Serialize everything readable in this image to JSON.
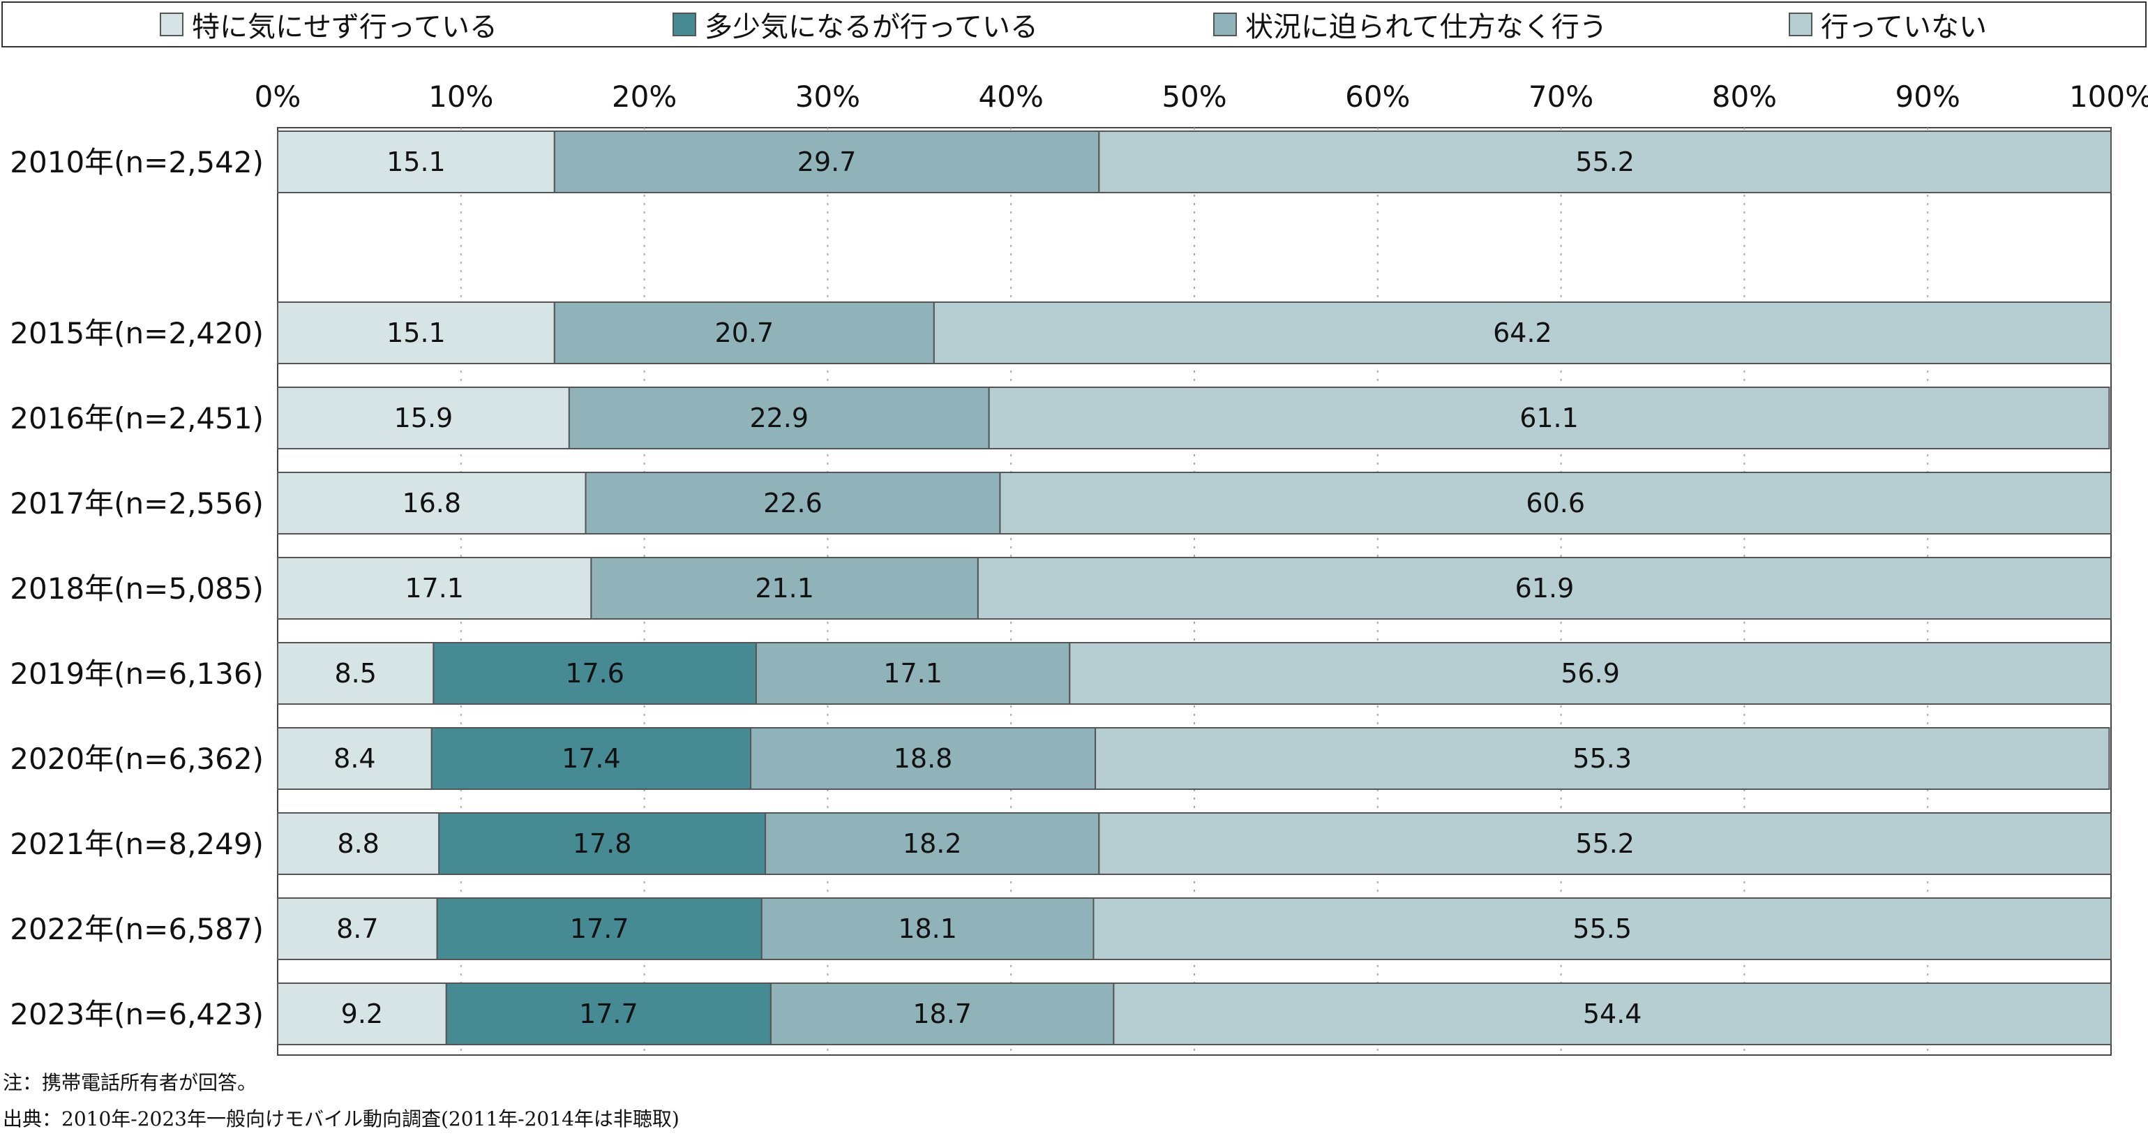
{
  "chart_data": {
    "type": "bar",
    "orientation": "horizontal",
    "stacked": true,
    "legend_position": "top",
    "x_ticks": [
      "0%",
      "10%",
      "20%",
      "30%",
      "40%",
      "50%",
      "60%",
      "70%",
      "80%",
      "90%",
      "100%"
    ],
    "xlim": [
      0,
      100
    ],
    "categories": [
      "2010年(n=2,542)",
      "2015年(n=2,420)",
      "2016年(n=2,451)",
      "2017年(n=2,556)",
      "2018年(n=5,085)",
      "2019年(n=6,136)",
      "2020年(n=6,362)",
      "2021年(n=8,249)",
      "2022年(n=6,587)",
      "2023年(n=6,423)"
    ],
    "series": [
      {
        "name": "特に気にせず行っている",
        "color": "#d6e4e6",
        "values": [
          15.1,
          15.1,
          15.9,
          16.8,
          17.1,
          8.5,
          8.4,
          8.8,
          8.7,
          9.2
        ]
      },
      {
        "name": "多少気になるが行っている",
        "color": "#468a94",
        "values": [
          null,
          null,
          null,
          null,
          null,
          17.6,
          17.4,
          17.8,
          17.7,
          17.7
        ]
      },
      {
        "name": "状況に迫られて仕方なく行う",
        "color": "#8fb3b8",
        "values": [
          29.7,
          20.7,
          22.9,
          22.6,
          21.1,
          17.1,
          18.8,
          18.2,
          18.1,
          18.7
        ]
      },
      {
        "name": "行っていない",
        "color": "#b6cdd2",
        "values": [
          55.2,
          64.2,
          61.1,
          60.6,
          61.9,
          56.9,
          55.3,
          55.2,
          55.5,
          54.4
        ]
      }
    ],
    "grid": true
  },
  "notes": {
    "note1": "注：携帯電話所有者が回答。",
    "note2": "出典：2010年-2023年一般向けモバイル動向調査(2011年-2014年は非聴取)"
  }
}
